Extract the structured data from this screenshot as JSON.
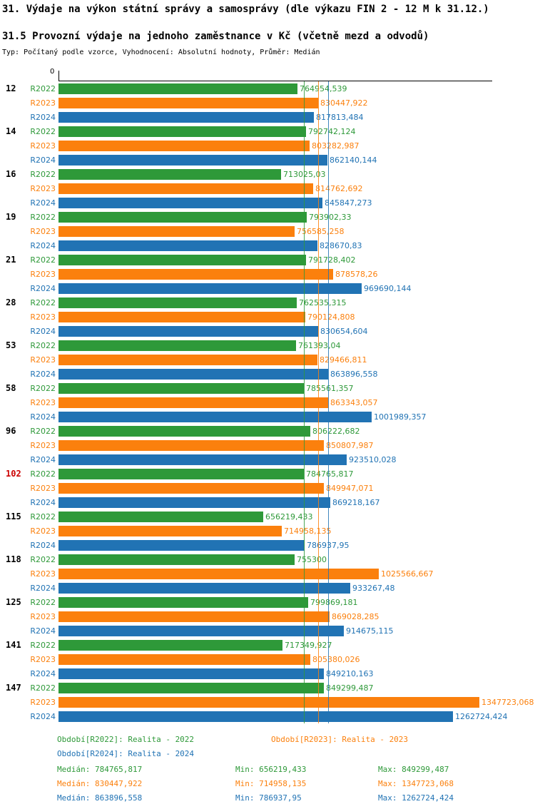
{
  "header": {
    "title": "31. Výdaje na výkon státní správy a samosprávy (dle výkazu FIN 2 - 12 M k 31.12.)",
    "subtitle": "31.5 Provozní výdaje na jednoho zaměstnance v Kč (včetně mezd a odvodů)",
    "meta": "Typ: Počítaný podle vzorce, Vyhodnocení: Absolutní hodnoty, Průměr: Medián"
  },
  "chart_data": {
    "type": "bar",
    "orientation": "horizontal",
    "value_axis": {
      "zero_label": "0",
      "min": 0
    },
    "series_names": [
      "R2022",
      "R2023",
      "R2024"
    ],
    "series_colors": [
      "#2e9939",
      "#fb800d",
      "#2173b4"
    ],
    "highlight_color": "#cc0000",
    "medians": [
      784765.817,
      830447.922,
      863896.558
    ],
    "groups": [
      {
        "category": "12",
        "highlight": false,
        "values": [
          764954.539,
          830447.922,
          817813.484
        ],
        "labels": [
          "764954,539",
          "830447,922",
          "817813,484"
        ]
      },
      {
        "category": "14",
        "highlight": false,
        "values": [
          792742.124,
          803282.987,
          862140.144
        ],
        "labels": [
          "792742,124",
          "803282,987",
          "862140,144"
        ]
      },
      {
        "category": "16",
        "highlight": false,
        "values": [
          713025.03,
          814762.692,
          845847.273
        ],
        "labels": [
          "713025,03",
          "814762,692",
          "845847,273"
        ]
      },
      {
        "category": "19",
        "highlight": false,
        "values": [
          793902.33,
          756585.258,
          828670.83
        ],
        "labels": [
          "793902,33",
          "756585,258",
          "828670,83"
        ]
      },
      {
        "category": "21",
        "highlight": false,
        "values": [
          791728.402,
          878578.26,
          969690.144
        ],
        "labels": [
          "791728,402",
          "878578,26",
          "969690,144"
        ]
      },
      {
        "category": "28",
        "highlight": false,
        "values": [
          762535.315,
          790124.808,
          830654.604
        ],
        "labels": [
          "762535,315",
          "790124,808",
          "830654,604"
        ]
      },
      {
        "category": "53",
        "highlight": false,
        "values": [
          761393.04,
          829466.811,
          863896.558
        ],
        "labels": [
          "761393,04",
          "829466,811",
          "863896,558"
        ]
      },
      {
        "category": "58",
        "highlight": false,
        "values": [
          785561.357,
          863343.057,
          1001989.357
        ],
        "labels": [
          "785561,357",
          "863343,057",
          "1001989,357"
        ]
      },
      {
        "category": "96",
        "highlight": false,
        "values": [
          806222.682,
          850807.987,
          923510.028
        ],
        "labels": [
          "806222,682",
          "850807,987",
          "923510,028"
        ]
      },
      {
        "category": "102",
        "highlight": true,
        "values": [
          784765.817,
          849947.071,
          869218.167
        ],
        "labels": [
          "784765,817",
          "849947,071",
          "869218,167"
        ]
      },
      {
        "category": "115",
        "highlight": false,
        "values": [
          656219.433,
          714958.135,
          786937.95
        ],
        "labels": [
          "656219,433",
          "714958,135",
          "786937,95"
        ]
      },
      {
        "category": "118",
        "highlight": false,
        "values": [
          755300,
          1025566.667,
          933267.48
        ],
        "labels": [
          "755300",
          "1025566,667",
          "933267,48"
        ]
      },
      {
        "category": "125",
        "highlight": false,
        "values": [
          799869.181,
          869028.285,
          914675.115
        ],
        "labels": [
          "799869,181",
          "869028,285",
          "914675,115"
        ]
      },
      {
        "category": "141",
        "highlight": false,
        "values": [
          717349.927,
          805380.026,
          849210.163
        ],
        "labels": [
          "717349,927",
          "805380,026",
          "849210,163"
        ]
      },
      {
        "category": "147",
        "highlight": false,
        "values": [
          849299.487,
          1347723.068,
          1262724.424
        ],
        "labels": [
          "849299,487",
          "1347723,068",
          "1262724,424"
        ]
      }
    ]
  },
  "legend": {
    "items": [
      {
        "label": "Období[R2022]: Realita - 2022"
      },
      {
        "label": "Období[R2023]: Realita - 2023"
      },
      {
        "label": "Období[R2024]: Realita - 2024"
      }
    ],
    "stats": [
      {
        "median": "Medián: 784765,817",
        "min": "Min: 656219,433",
        "max": "Max: 849299,487"
      },
      {
        "median": "Medián: 830447,922",
        "min": "Min: 714958,135",
        "max": "Max: 1347723,068"
      },
      {
        "median": "Medián: 863896,558",
        "min": "Min: 786937,95",
        "max": "Max: 1262724,424"
      }
    ]
  }
}
